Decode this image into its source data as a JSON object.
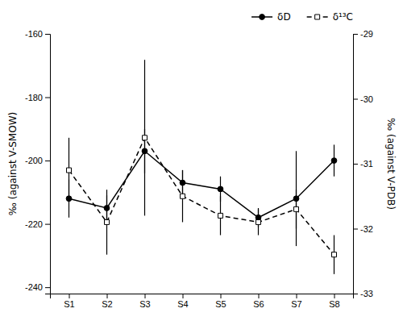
{
  "chart_data": {
    "type": "line",
    "categories": [
      "S1",
      "S2",
      "S3",
      "S4",
      "S5",
      "S6",
      "S7",
      "S8"
    ],
    "ylabel": "‰ (against V-SMOW)",
    "y2label": "‰ (against V-PDB)",
    "ylim": [
      -242,
      -160
    ],
    "yticks": [
      -240,
      -220,
      -200,
      -180,
      -160
    ],
    "y2lim": [
      -33,
      -29
    ],
    "y2ticks": [
      -33,
      -32,
      -31,
      -30,
      -29
    ],
    "legend": "top",
    "series": [
      {
        "name": "δD",
        "color": "#000000",
        "marker": "circle",
        "line_style": "solid",
        "values": [
          -212,
          -215,
          -197,
          -207,
          -209,
          -218,
          -212,
          -200
        ],
        "error_low": [
          6,
          4,
          7,
          4,
          4,
          3,
          15,
          5
        ],
        "error_high": [
          6,
          4,
          7,
          4,
          4,
          3,
          15,
          5
        ]
      },
      {
        "name": "δ¹³C",
        "color": "#000000",
        "marker": "square-open",
        "line_style": "dashed",
        "axis": "y2",
        "values": [
          -31.1,
          -31.9,
          -30.6,
          -31.5,
          -31.8,
          -31.9,
          -31.7,
          -32.4
        ],
        "error_low": [
          0.5,
          0.5,
          1.2,
          0.4,
          0.3,
          0.2,
          0.3,
          0.3
        ],
        "error_high": [
          0.5,
          0.5,
          1.2,
          0.4,
          0.3,
          0.2,
          0.3,
          0.3
        ]
      }
    ]
  }
}
